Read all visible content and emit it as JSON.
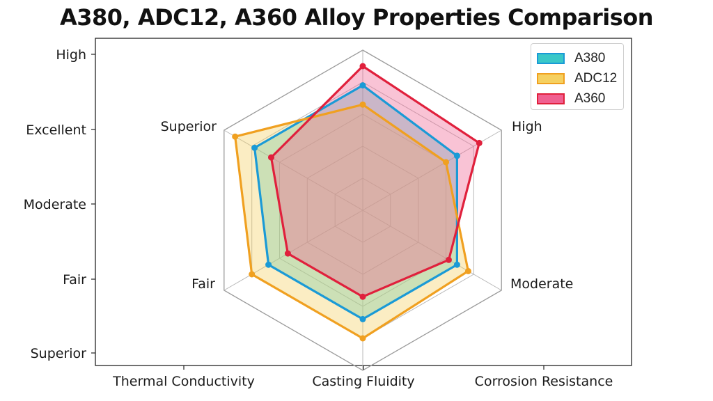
{
  "chart_data": {
    "type": "radar",
    "title": "A380, ADC12, A360 Alloy Properties Comparison",
    "axes": [
      "Top",
      "Upper right",
      "Lower right",
      "Bottom",
      "Lower left",
      "Upper left"
    ],
    "axis_labels": {
      "upper_right": "High",
      "lower_right": "Moderate",
      "lower_left": "Fair",
      "upper_left": "Superior"
    },
    "y_ticks": [
      "High",
      "Excellent",
      "Moderate",
      "Fair",
      "Superior"
    ],
    "x_ticks": [
      "Thermal Conductivity",
      "Casting Fluidity",
      "Corrosion Resistance"
    ],
    "r_max": 5,
    "series": [
      {
        "name": "A380",
        "color": "#1a9ad6",
        "fill": "#3ac8c8",
        "values": [
          3.9,
          3.4,
          3.4,
          3.4,
          3.4,
          3.9
        ]
      },
      {
        "name": "ADC12",
        "color": "#f0a020",
        "fill": "#f5d060",
        "values": [
          3.3,
          3.0,
          3.8,
          4.0,
          4.0,
          4.6
        ]
      },
      {
        "name": "A360",
        "color": "#e0203c",
        "fill": "#f06090",
        "values": [
          4.5,
          4.2,
          3.1,
          2.7,
          2.7,
          3.3
        ]
      }
    ],
    "grid": true,
    "legend_position": "top-right"
  }
}
